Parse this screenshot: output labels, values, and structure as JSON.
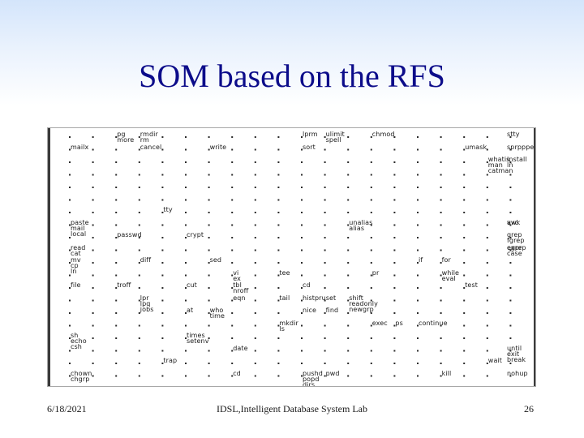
{
  "slide": {
    "title": "SOM based on the RFS",
    "date": "6/18/2021",
    "lab": "IDSL,Intelligent Database System Lab",
    "page_number": "26"
  },
  "som_map": {
    "grid_columns": 20,
    "grid_rows": 20,
    "labels": [
      {
        "text": "pg",
        "col": 2,
        "row": 0
      },
      {
        "text": "more",
        "col": 2,
        "row": 0,
        "line": 1
      },
      {
        "text": "rmdir",
        "col": 3,
        "row": 0
      },
      {
        "text": "rm",
        "col": 3,
        "row": 0,
        "line": 1
      },
      {
        "text": "lprm",
        "col": 10,
        "row": 0
      },
      {
        "text": "ulimit",
        "col": 11,
        "row": 0
      },
      {
        "text": "spell",
        "col": 11,
        "row": 0,
        "line": 1
      },
      {
        "text": "chmod",
        "col": 13,
        "row": 0
      },
      {
        "text": "stty",
        "col": 19,
        "row": 0
      },
      {
        "text": "mailx",
        "col": 0,
        "row": 1
      },
      {
        "text": "cancel",
        "col": 3,
        "row": 1
      },
      {
        "text": "write",
        "col": 6,
        "row": 1
      },
      {
        "text": "sort",
        "col": 10,
        "row": 1
      },
      {
        "text": "umask",
        "col": 17,
        "row": 1
      },
      {
        "text": "sprpppe",
        "col": 20,
        "row": 1
      },
      {
        "text": "whatis",
        "col": 18,
        "row": 2
      },
      {
        "text": "man",
        "col": 18,
        "row": 2,
        "line": 1
      },
      {
        "text": "catman",
        "col": 18,
        "row": 2,
        "line": 2
      },
      {
        "text": "install",
        "col": 20,
        "row": 2
      },
      {
        "text": "ln",
        "col": 20,
        "row": 2,
        "line": 1
      },
      {
        "text": "tty",
        "col": 4,
        "row": 6
      },
      {
        "text": "paste",
        "col": 0,
        "row": 7
      },
      {
        "text": "mail",
        "col": 0,
        "row": 7,
        "line": 1
      },
      {
        "text": "local",
        "col": 0,
        "row": 7,
        "line": 2
      },
      {
        "text": "unalias",
        "col": 12,
        "row": 7
      },
      {
        "text": "alias",
        "col": 12,
        "row": 7,
        "line": 1
      },
      {
        "text": "vvc",
        "col": 19,
        "row": 7
      },
      {
        "text": "awk",
        "col": 20,
        "row": 7
      },
      {
        "text": "passwd",
        "col": 2,
        "row": 8
      },
      {
        "text": "crypt",
        "col": 5,
        "row": 8
      },
      {
        "text": "grep",
        "col": 20,
        "row": 8
      },
      {
        "text": "fgrep",
        "col": 20,
        "row": 8,
        "line": 1
      },
      {
        "text": "read",
        "col": 0,
        "row": 9
      },
      {
        "text": "cat",
        "col": 0,
        "row": 9,
        "line": 1
      },
      {
        "text": "egrep",
        "col": 19,
        "row": 9
      },
      {
        "text": "expr",
        "col": 20,
        "row": 9
      },
      {
        "text": "case",
        "col": 20,
        "row": 9,
        "line": 1
      },
      {
        "text": "mv",
        "col": 0,
        "row": 10
      },
      {
        "text": "cp",
        "col": 0,
        "row": 10,
        "line": 1
      },
      {
        "text": "ln",
        "col": 0,
        "row": 10,
        "line": 2
      },
      {
        "text": "diff",
        "col": 3,
        "row": 10
      },
      {
        "text": "sed",
        "col": 6,
        "row": 10
      },
      {
        "text": "if",
        "col": 15,
        "row": 10
      },
      {
        "text": "for",
        "col": 16,
        "row": 10
      },
      {
        "text": "vi",
        "col": 7,
        "row": 11
      },
      {
        "text": "ex",
        "col": 7,
        "row": 11,
        "line": 1
      },
      {
        "text": "tee",
        "col": 9,
        "row": 11
      },
      {
        "text": "pr",
        "col": 13,
        "row": 11
      },
      {
        "text": "while",
        "col": 16,
        "row": 11
      },
      {
        "text": "eval",
        "col": 16,
        "row": 11,
        "line": 1
      },
      {
        "text": "file",
        "col": 0,
        "row": 12
      },
      {
        "text": "troff",
        "col": 2,
        "row": 12
      },
      {
        "text": "cut",
        "col": 5,
        "row": 12
      },
      {
        "text": "tbl",
        "col": 7,
        "row": 12
      },
      {
        "text": "nroff",
        "col": 7,
        "row": 12,
        "line": 1
      },
      {
        "text": "cd",
        "col": 10,
        "row": 12
      },
      {
        "text": "test",
        "col": 17,
        "row": 12
      },
      {
        "text": "lpr",
        "col": 3,
        "row": 13
      },
      {
        "text": "lpq",
        "col": 3,
        "row": 13,
        "line": 1
      },
      {
        "text": "jobs",
        "col": 3,
        "row": 13,
        "line": 2
      },
      {
        "text": "eqn",
        "col": 7,
        "row": 13
      },
      {
        "text": "tail",
        "col": 9,
        "row": 13
      },
      {
        "text": "histpruset",
        "col": 10,
        "row": 13
      },
      {
        "text": "shift",
        "col": 12,
        "row": 13
      },
      {
        "text": "readonly",
        "col": 12,
        "row": 13,
        "line": 1
      },
      {
        "text": "newgrp",
        "col": 12,
        "row": 13,
        "line": 2
      },
      {
        "text": "at",
        "col": 5,
        "row": 14
      },
      {
        "text": "who",
        "col": 6,
        "row": 14
      },
      {
        "text": "time",
        "col": 6,
        "row": 14,
        "line": 1
      },
      {
        "text": "nice",
        "col": 10,
        "row": 14
      },
      {
        "text": "find",
        "col": 11,
        "row": 14
      },
      {
        "text": "mkdir",
        "col": 9,
        "row": 15
      },
      {
        "text": "ls",
        "col": 9,
        "row": 15,
        "line": 1
      },
      {
        "text": "exec",
        "col": 13,
        "row": 15
      },
      {
        "text": "ps",
        "col": 14,
        "row": 15
      },
      {
        "text": "continue",
        "col": 15,
        "row": 15
      },
      {
        "text": "sh",
        "col": 0,
        "row": 16
      },
      {
        "text": "echo",
        "col": 0,
        "row": 16,
        "line": 1
      },
      {
        "text": "csh",
        "col": 0,
        "row": 16,
        "line": 2
      },
      {
        "text": "times",
        "col": 5,
        "row": 16
      },
      {
        "text": "setenv",
        "col": 5,
        "row": 16,
        "line": 1
      },
      {
        "text": "date",
        "col": 7,
        "row": 17
      },
      {
        "text": "until",
        "col": 19,
        "row": 17
      },
      {
        "text": "exit",
        "col": 19,
        "row": 17,
        "line": 1
      },
      {
        "text": "break",
        "col": 19,
        "row": 17,
        "line": 2
      },
      {
        "text": "trap",
        "col": 4,
        "row": 18
      },
      {
        "text": "wait",
        "col": 18,
        "row": 18
      },
      {
        "text": "chown",
        "col": 0,
        "row": 19
      },
      {
        "text": "chgrp",
        "col": 0,
        "row": 19,
        "line": 1
      },
      {
        "text": "cd",
        "col": 7,
        "row": 19
      },
      {
        "text": "pushd",
        "col": 10,
        "row": 19
      },
      {
        "text": "pwd",
        "col": 11,
        "row": 19
      },
      {
        "text": "popd",
        "col": 10,
        "row": 19,
        "line": 1
      },
      {
        "text": "dirs",
        "col": 10,
        "row": 19,
        "line": 2
      },
      {
        "text": "kill",
        "col": 16,
        "row": 19
      },
      {
        "text": "nohup",
        "col": 19,
        "row": 19
      }
    ]
  }
}
